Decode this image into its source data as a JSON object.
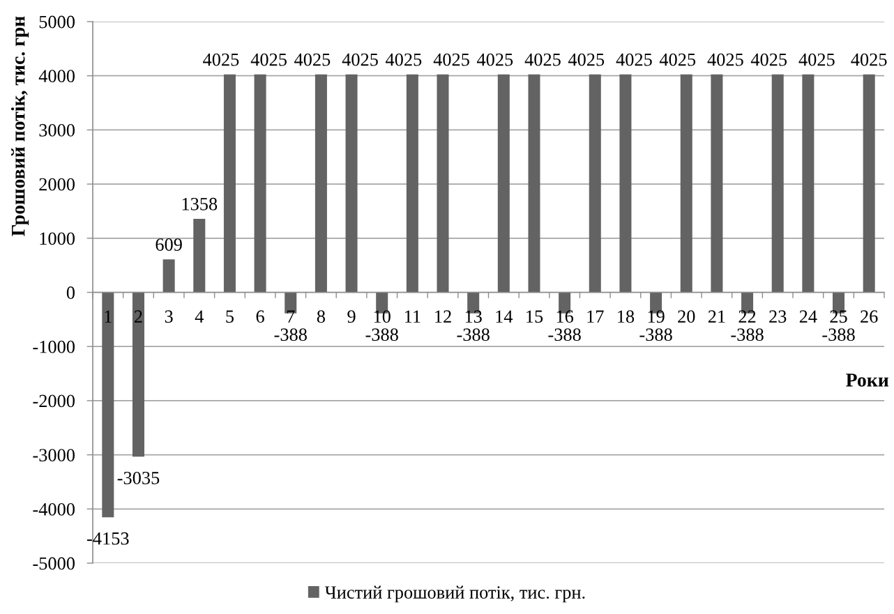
{
  "chart_data": {
    "type": "bar",
    "xlabel": "Роки",
    "ylabel": "Грошовий потік, тис. грн",
    "categories": [
      "1",
      "2",
      "3",
      "4",
      "5",
      "6",
      "7",
      "8",
      "9",
      "10",
      "11",
      "12",
      "13",
      "14",
      "15",
      "16",
      "17",
      "18",
      "19",
      "20",
      "21",
      "22",
      "23",
      "24",
      "25",
      "26"
    ],
    "series": [
      {
        "name": "Чистий грошовий потік, тис. грн.",
        "color": "#636363",
        "values": [
          -4153,
          -3035,
          609,
          1358,
          4025,
          4025,
          -388,
          4025,
          4025,
          -388,
          4025,
          4025,
          -388,
          4025,
          4025,
          -388,
          4025,
          4025,
          -388,
          4025,
          4025,
          -388,
          4025,
          4025,
          -388,
          4025
        ]
      }
    ],
    "ylim": [
      -5000,
      5000
    ],
    "yticks": [
      -5000,
      -4000,
      -3000,
      -2000,
      -1000,
      0,
      1000,
      2000,
      3000,
      4000,
      5000
    ],
    "grid": "y",
    "legend": "bottom",
    "data_labels": true
  }
}
